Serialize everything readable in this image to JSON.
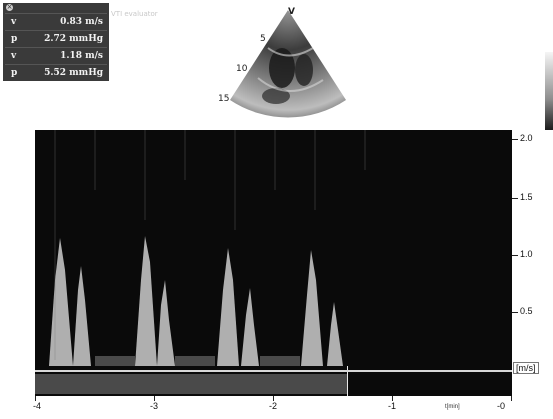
{
  "measurements": {
    "caption": "VTI evaluator",
    "rows": [
      {
        "label": "v",
        "value": "0.83 m/s"
      },
      {
        "label": "p",
        "value": "2.72 mmHg"
      },
      {
        "label": "v",
        "value": "1.18 m/s"
      },
      {
        "label": "p",
        "value": "5.52 mmHg"
      }
    ]
  },
  "sector_view": {
    "marker": "V",
    "depth_ticks": [
      "5",
      "10",
      "15"
    ]
  },
  "doppler": {
    "unit_label": "[m/s]",
    "y_ticks": [
      "2.0",
      "1.5",
      "1.0",
      "0.5"
    ],
    "x_ticks": [
      "-4",
      "-3",
      "-2",
      "-1",
      "-0"
    ],
    "x_unit": "t[min]"
  },
  "colors": {
    "panel_bg": "#3a3a3a",
    "doppler_bg": "#0a0a0a",
    "signal": "#d9d9d9"
  }
}
